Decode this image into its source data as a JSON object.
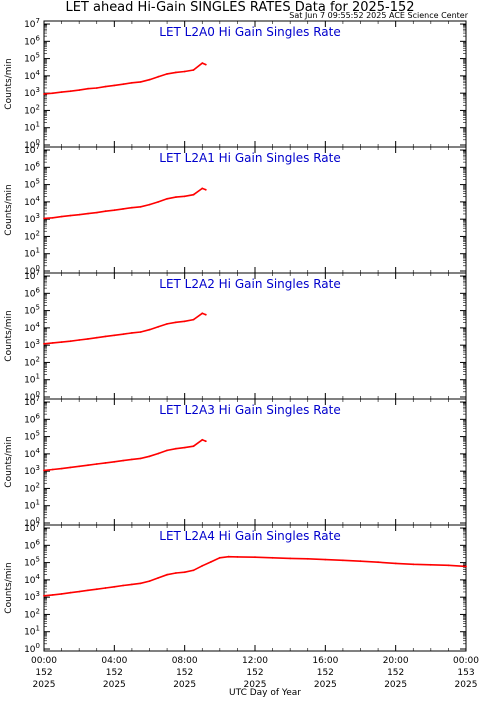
{
  "header": {
    "title": "LET ahead Hi-Gain SINGLES RATES Data for 2025-152",
    "timestamp": "Sat Jun  7 09:55:52 2025 ACE Science Center"
  },
  "colors": {
    "data_line": "#ff0000",
    "panel_title": "#0000cc",
    "axes": "#000000"
  },
  "x_axis": {
    "label": "UTC Day of Year",
    "ticks": [
      {
        "hour": 0,
        "time": "00:00",
        "doy": "152",
        "year": "2025"
      },
      {
        "hour": 4,
        "time": "04:00",
        "doy": "152",
        "year": "2025"
      },
      {
        "hour": 8,
        "time": "08:00",
        "doy": "152",
        "year": "2025"
      },
      {
        "hour": 12,
        "time": "12:00",
        "doy": "152",
        "year": "2025"
      },
      {
        "hour": 16,
        "time": "16:00",
        "doy": "152",
        "year": "2025"
      },
      {
        "hour": 20,
        "time": "20:00",
        "doy": "152",
        "year": "2025"
      },
      {
        "hour": 24,
        "time": "00:00",
        "doy": "153",
        "year": "2025"
      }
    ]
  },
  "chart_data": [
    {
      "type": "line",
      "title": "LET L2A0 Hi Gain Singles Rate",
      "ylabel": "Counts/min",
      "yscale": "log",
      "ylim": [
        1,
        10000000
      ],
      "xlim": [
        0,
        24
      ],
      "yticks": [
        "10^0",
        "10^1",
        "10^2",
        "10^3",
        "10^4",
        "10^5",
        "10^6",
        "10^7"
      ],
      "x": [
        0,
        0.5,
        1,
        1.5,
        2,
        2.5,
        3,
        3.5,
        4,
        4.5,
        5,
        5.5,
        6,
        6.5,
        7,
        7.5,
        8,
        8.5,
        9,
        9.2
      ],
      "values": [
        900,
        1000,
        1150,
        1300,
        1500,
        1800,
        2000,
        2400,
        2800,
        3300,
        4000,
        4500,
        6000,
        9000,
        13000,
        16000,
        18000,
        22000,
        55000,
        45000
      ]
    },
    {
      "type": "line",
      "title": "LET L2A1 Hi Gain Singles Rate",
      "ylabel": "Counts/min",
      "yscale": "log",
      "ylim": [
        1,
        10000000
      ],
      "xlim": [
        0,
        24
      ],
      "yticks": [
        "10^0",
        "10^1",
        "10^2",
        "10^3",
        "10^4",
        "10^5",
        "10^6",
        "10^7"
      ],
      "x": [
        0,
        0.5,
        1,
        1.5,
        2,
        2.5,
        3,
        3.5,
        4,
        4.5,
        5,
        5.5,
        6,
        6.5,
        7,
        7.5,
        8,
        8.5,
        9,
        9.2
      ],
      "values": [
        1100,
        1200,
        1400,
        1600,
        1800,
        2100,
        2400,
        2900,
        3300,
        3900,
        4600,
        5200,
        7000,
        10000,
        15000,
        19000,
        21000,
        26000,
        60000,
        50000
      ]
    },
    {
      "type": "line",
      "title": "LET L2A2 Hi Gain Singles Rate",
      "ylabel": "Counts/min",
      "yscale": "log",
      "ylim": [
        1,
        10000000
      ],
      "xlim": [
        0,
        24
      ],
      "yticks": [
        "10^0",
        "10^1",
        "10^2",
        "10^3",
        "10^4",
        "10^5",
        "10^6",
        "10^7"
      ],
      "x": [
        0,
        0.5,
        1,
        1.5,
        2,
        2.5,
        3,
        3.5,
        4,
        4.5,
        5,
        5.5,
        6,
        6.5,
        7,
        7.5,
        8,
        8.5,
        9,
        9.2
      ],
      "values": [
        1200,
        1350,
        1500,
        1700,
        2000,
        2300,
        2700,
        3200,
        3700,
        4300,
        5100,
        5800,
        7800,
        11500,
        17000,
        21000,
        24000,
        30000,
        70000,
        58000
      ]
    },
    {
      "type": "line",
      "title": "LET L2A3 Hi Gain Singles Rate",
      "ylabel": "Counts/min",
      "yscale": "log",
      "ylim": [
        1,
        10000000
      ],
      "xlim": [
        0,
        24
      ],
      "yticks": [
        "10^0",
        "10^1",
        "10^2",
        "10^3",
        "10^4",
        "10^5",
        "10^6",
        "10^7"
      ],
      "x": [
        0,
        0.5,
        1,
        1.5,
        2,
        2.5,
        3,
        3.5,
        4,
        4.5,
        5,
        5.5,
        6,
        6.5,
        7,
        7.5,
        8,
        8.5,
        9,
        9.2
      ],
      "values": [
        1100,
        1250,
        1400,
        1650,
        1900,
        2200,
        2600,
        3000,
        3500,
        4100,
        4800,
        5500,
        7200,
        10500,
        16000,
        20000,
        23000,
        28000,
        65000,
        54000
      ]
    },
    {
      "type": "line",
      "title": "LET L2A4 Hi Gain Singles Rate",
      "ylabel": "Counts/min",
      "yscale": "log",
      "ylim": [
        1,
        10000000
      ],
      "xlim": [
        0,
        24
      ],
      "yticks": [
        "10^0",
        "10^1",
        "10^2",
        "10^3",
        "10^4",
        "10^5",
        "10^6",
        "10^7"
      ],
      "x": [
        0,
        0.5,
        1,
        1.5,
        2,
        2.5,
        3,
        3.5,
        4,
        4.5,
        5,
        5.5,
        6,
        6.5,
        7,
        7.5,
        8,
        8.5,
        9,
        9.5,
        10,
        10.5,
        11,
        12,
        13,
        14,
        15,
        16,
        17,
        18,
        19,
        20,
        21,
        22,
        23,
        24
      ],
      "values": [
        1200,
        1350,
        1550,
        1800,
        2100,
        2500,
        2900,
        3400,
        4000,
        4700,
        5500,
        6300,
        8500,
        13000,
        20000,
        25000,
        28000,
        36000,
        65000,
        110000,
        190000,
        220000,
        215000,
        205000,
        190000,
        175000,
        165000,
        150000,
        135000,
        120000,
        105000,
        90000,
        80000,
        75000,
        70000,
        60000
      ]
    }
  ]
}
